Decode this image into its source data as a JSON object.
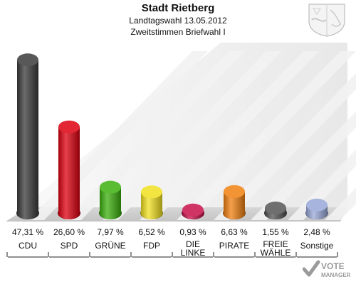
{
  "header": {
    "title": "Stadt Rietberg",
    "subtitle": "Landtagswahl 13.05.2012",
    "subtitle2": "Zweitstimmen Briefwahl I"
  },
  "logo": {
    "icon": "vote-manager-logo",
    "line1": "VOTE",
    "line2": "MANAGER"
  },
  "crest": {
    "icon": "nrw-coat-of-arms-icon"
  },
  "chart_data": {
    "type": "bar",
    "title": "Stadt Rietberg",
    "subtitle": "Landtagswahl 13.05.2012 — Zweitstimmen Briefwahl I",
    "ylim": [
      0,
      50
    ],
    "grid": false,
    "legend": "none",
    "categories": [
      {
        "key": "cdu",
        "line1": "CDU",
        "line2": "",
        "value": 47.31,
        "label": "47,31 %",
        "color": "#3a3a3a"
      },
      {
        "key": "spd",
        "line1": "SPD",
        "line2": "",
        "value": 26.6,
        "label": "26,60 %",
        "color": "#dd0010"
      },
      {
        "key": "gruene",
        "line1": "GRÜNE",
        "line2": "",
        "value": 7.97,
        "label": "7,97 %",
        "color": "#3cb00e"
      },
      {
        "key": "fdp",
        "line1": "FDP",
        "line2": "",
        "value": 6.52,
        "label": "6,52 %",
        "color": "#f0e020"
      },
      {
        "key": "linke",
        "line1": "DIE",
        "line2": "LINKE",
        "value": 0.93,
        "label": "0,93 %",
        "color": "#c8104a"
      },
      {
        "key": "piraten",
        "line1": "PIRATE",
        "line2": "",
        "value": 6.63,
        "label": "6,63 %",
        "color": "#f08010"
      },
      {
        "key": "freie",
        "line1": "FREIE",
        "line2": "WÄHLE",
        "value": 1.55,
        "label": "1,55 %",
        "color": "#555555"
      },
      {
        "key": "sonstige",
        "line1": "Sonstige",
        "line2": "",
        "value": 2.48,
        "label": "2,48 %",
        "color": "#98a8d8"
      }
    ]
  }
}
